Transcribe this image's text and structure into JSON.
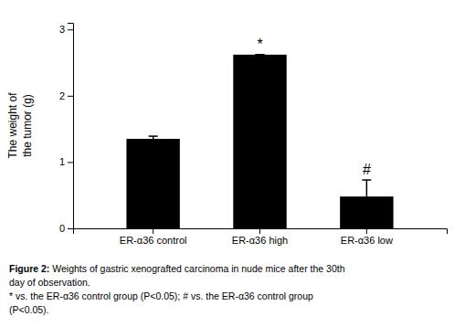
{
  "chart_data": {
    "type": "bar",
    "categories": [
      "ER-α36 control",
      "ER-α36 high",
      "ER-α36 low"
    ],
    "values": [
      1.35,
      2.62,
      0.48
    ],
    "errors": [
      0.04,
      0.0,
      0.25
    ],
    "color": "#000000",
    "ylim": [
      0,
      3.1
    ],
    "yticks": [
      0,
      1,
      2,
      3
    ],
    "ylabel": [
      "The weight of",
      "the tumor (g)"
    ],
    "annotations": [
      {
        "text": "*",
        "category": "ER-α36 high"
      },
      {
        "text": "#",
        "category": "ER-α36 low"
      }
    ],
    "caption": [
      [
        "Figure 2:",
        " Weights of gastric xenografted carcinoma in nude mice after the 30th"
      ],
      [
        "day of observation."
      ],
      [
        "* vs. the ER-α36 control group (P<0.05); # vs. the ER-α36 control group"
      ],
      [
        "(P<0.05)."
      ]
    ],
    "grid": false
  }
}
